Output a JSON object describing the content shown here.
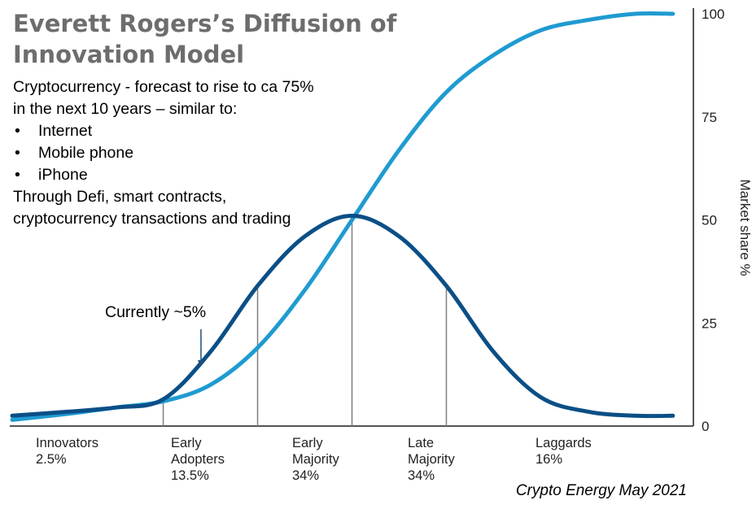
{
  "title_line1": "Everett Rogers’s Diffusion of",
  "title_line2": "Innovation Model",
  "notes": {
    "line1": "Cryptocurrency - forecast to rise to ca 75%",
    "line2": "in the next 10 years – similar to:",
    "bullets": [
      "Internet",
      "Mobile phone",
      "iPhone"
    ],
    "line3": "Through Defi, smart contracts,",
    "line4": "cryptocurrency transactions and trading"
  },
  "callout": "Currently ~5%",
  "source": "Crypto Energy May 2021",
  "colors": {
    "adoption_curve": "#1f9bd1",
    "bell_curve": "#0b4f86",
    "callout_arrow": "#1f4e79",
    "divider": "#7f7f7f",
    "axis": "#555555"
  },
  "chart_data": {
    "type": "line",
    "ylabel": "Market share %",
    "ylim": [
      0,
      100
    ],
    "yticks": [
      0,
      25,
      50,
      75,
      100
    ],
    "xlim": [
      -3.6,
      3.6
    ],
    "x_unit": "standard deviations from mean adoption time (not printed)",
    "segments": [
      {
        "name": "Innovators",
        "share": "2.5%",
        "boundary_right": -2
      },
      {
        "name": "Early Adopters",
        "share": "13.5%",
        "boundary_right": -1
      },
      {
        "name": "Early Majority",
        "share": "34%",
        "boundary_right": 0
      },
      {
        "name": "Late Majority",
        "share": "34%",
        "boundary_right": 1
      },
      {
        "name": "Laggards",
        "share": "16%",
        "boundary_right": null
      }
    ],
    "series": [
      {
        "key": "adoption",
        "x": [
          -3.6,
          -3,
          -2.5,
          -2,
          -1.5,
          -1,
          -0.5,
          0,
          0.5,
          1,
          1.5,
          2,
          2.5,
          3,
          3.4
        ],
        "y": [
          1.5,
          3,
          4.5,
          6,
          10,
          19,
          33,
          50,
          67,
          81,
          90,
          96,
          98.5,
          100,
          100
        ]
      },
      {
        "key": "adopters",
        "x": [
          -3.6,
          -3,
          -2.5,
          -2,
          -1.5,
          -1,
          -0.5,
          0,
          0.5,
          1,
          1.5,
          2,
          2.5,
          3,
          3.4
        ],
        "y": [
          2.5,
          3.5,
          4.5,
          6.5,
          18,
          34,
          46,
          51,
          46,
          34,
          18,
          7,
          3.5,
          2.5,
          2.5
        ]
      }
    ],
    "callout_point": {
      "x": -1.6,
      "y": 14
    },
    "grid": false,
    "legend": "none"
  }
}
